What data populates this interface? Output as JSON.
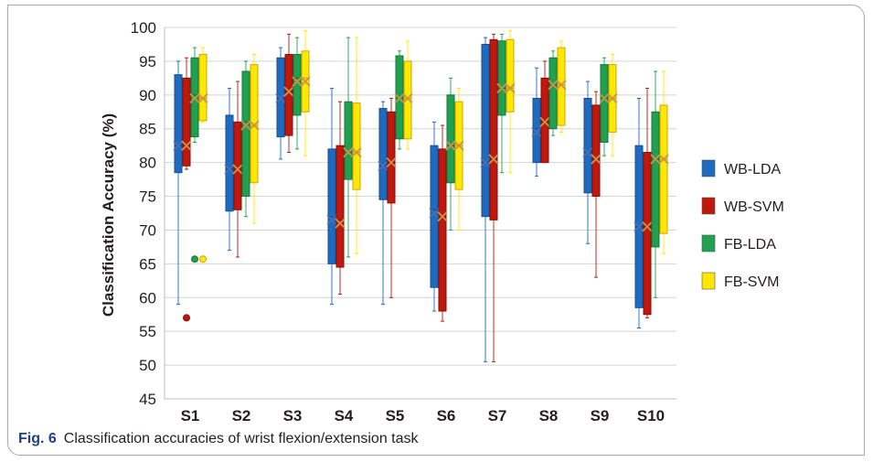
{
  "caption": {
    "label": "Fig. 6",
    "text": "Classification accuracies of wrist flexion/extension task"
  },
  "colors": {
    "WB-LDA": "#1f6bc0",
    "WB-SVM": "#c0180e",
    "FB-LDA": "#20a050",
    "FB-SVM": "#ffe800"
  },
  "chart_data": {
    "type": "boxplot",
    "ylabel": "Classification Accuracy (%)",
    "xlabel": "",
    "ylim": [
      45,
      100
    ],
    "yticks": [
      45,
      50,
      55,
      60,
      65,
      70,
      75,
      80,
      85,
      90,
      95,
      100
    ],
    "categories": [
      "S1",
      "S2",
      "S3",
      "S4",
      "S5",
      "S6",
      "S7",
      "S8",
      "S9",
      "S10"
    ],
    "grid": "horizontal",
    "legend_position": "right",
    "series": [
      {
        "name": "WB-LDA",
        "boxes": [
          {
            "min": 59,
            "q1": 78.5,
            "median": 82.5,
            "q3": 93,
            "max": 95,
            "mean": 82.5,
            "outliers": []
          },
          {
            "min": 67,
            "q1": 72.8,
            "median": 79,
            "q3": 87,
            "max": 91,
            "mean": 79,
            "outliers": []
          },
          {
            "min": 80.5,
            "q1": 83.8,
            "median": 89.5,
            "q3": 95.5,
            "max": 97,
            "mean": 89.5,
            "outliers": []
          },
          {
            "min": 59,
            "q1": 65,
            "median": 72,
            "q3": 82,
            "max": 91,
            "mean": 71.5,
            "outliers": []
          },
          {
            "min": 59,
            "q1": 74.5,
            "median": 79.5,
            "q3": 88,
            "max": 89,
            "mean": 79.5,
            "outliers": []
          },
          {
            "min": 58,
            "q1": 61.5,
            "median": 73,
            "q3": 82.5,
            "max": 86,
            "mean": 72.5,
            "outliers": []
          },
          {
            "min": 50.5,
            "q1": 72,
            "median": 80,
            "q3": 97.5,
            "max": 98.5,
            "mean": 80,
            "outliers": []
          },
          {
            "min": 78,
            "q1": 80,
            "median": 85,
            "q3": 89.5,
            "max": 94,
            "mean": 84.5,
            "outliers": []
          },
          {
            "min": 68,
            "q1": 75.5,
            "median": 81.5,
            "q3": 89.5,
            "max": 92,
            "mean": 81.5,
            "outliers": []
          },
          {
            "min": 55.5,
            "q1": 58.5,
            "median": 70.5,
            "q3": 82.5,
            "max": 89.5,
            "mean": 70.5,
            "outliers": []
          }
        ]
      },
      {
        "name": "WB-SVM",
        "boxes": [
          {
            "min": 79,
            "q1": 79.5,
            "median": 82.5,
            "q3": 92.5,
            "max": 95.5,
            "mean": 82.5,
            "outliers": [
              57
            ]
          },
          {
            "min": 66,
            "q1": 73,
            "median": 79,
            "q3": 86,
            "max": 92,
            "mean": 79,
            "outliers": []
          },
          {
            "min": 81.5,
            "q1": 84,
            "median": 90.5,
            "q3": 96,
            "max": 99,
            "mean": 90.5,
            "outliers": []
          },
          {
            "min": 60.5,
            "q1": 64.5,
            "median": 71.5,
            "q3": 82.5,
            "max": 89,
            "mean": 71,
            "outliers": []
          },
          {
            "min": 60,
            "q1": 74,
            "median": 80,
            "q3": 87.5,
            "max": 89.5,
            "mean": 80,
            "outliers": []
          },
          {
            "min": 56.5,
            "q1": 58,
            "median": 72,
            "q3": 82,
            "max": 85.5,
            "mean": 72,
            "outliers": []
          },
          {
            "min": 50.5,
            "q1": 71.5,
            "median": 80.5,
            "q3": 98.2,
            "max": 99,
            "mean": 80.5,
            "outliers": []
          },
          {
            "min": 80,
            "q1": 80,
            "median": 86,
            "q3": 92.5,
            "max": 95,
            "mean": 86,
            "outliers": []
          },
          {
            "min": 63,
            "q1": 75,
            "median": 80.5,
            "q3": 88.5,
            "max": 90.5,
            "mean": 80.5,
            "outliers": []
          },
          {
            "min": 57,
            "q1": 57.5,
            "median": 70.5,
            "q3": 81.5,
            "max": 91,
            "mean": 70.5,
            "outliers": []
          }
        ]
      },
      {
        "name": "FB-LDA",
        "boxes": [
          {
            "min": 83,
            "q1": 83.8,
            "median": 90,
            "q3": 95.5,
            "max": 97,
            "mean": 89.5,
            "outliers": [
              65.7
            ]
          },
          {
            "min": 72,
            "q1": 75,
            "median": 86,
            "q3": 93.5,
            "max": 95,
            "mean": 85.5,
            "outliers": []
          },
          {
            "min": 82,
            "q1": 87,
            "median": 92.5,
            "q3": 96,
            "max": 98.5,
            "mean": 92,
            "outliers": []
          },
          {
            "min": 66,
            "q1": 77.5,
            "median": 81.5,
            "q3": 89,
            "max": 98.5,
            "mean": 81.5,
            "outliers": []
          },
          {
            "min": 82,
            "q1": 83.5,
            "median": 89.5,
            "q3": 95.8,
            "max": 96.5,
            "mean": 89.5,
            "outliers": []
          },
          {
            "min": 70,
            "q1": 77,
            "median": 82.5,
            "q3": 90,
            "max": 92.5,
            "mean": 82.5,
            "outliers": []
          },
          {
            "min": 78.5,
            "q1": 87,
            "median": 91,
            "q3": 98,
            "max": 99,
            "mean": 91,
            "outliers": []
          },
          {
            "min": 84,
            "q1": 85,
            "median": 91.5,
            "q3": 95.5,
            "max": 96.5,
            "mean": 91.5,
            "outliers": []
          },
          {
            "min": 81,
            "q1": 83,
            "median": 89.5,
            "q3": 94.5,
            "max": 95.5,
            "mean": 89.5,
            "outliers": []
          },
          {
            "min": 60,
            "q1": 67.5,
            "median": 80.5,
            "q3": 87.5,
            "max": 93.5,
            "mean": 80.5,
            "outliers": []
          }
        ]
      },
      {
        "name": "FB-SVM",
        "boxes": [
          {
            "min": 86,
            "q1": 86.2,
            "median": 89.5,
            "q3": 96,
            "max": 97,
            "mean": 89.5,
            "outliers": [
              65.7
            ]
          },
          {
            "min": 71,
            "q1": 77,
            "median": 85.5,
            "q3": 94.5,
            "max": 96,
            "mean": 85.5,
            "outliers": []
          },
          {
            "min": 81,
            "q1": 87.5,
            "median": 92.5,
            "q3": 96.5,
            "max": 99.5,
            "mean": 92,
            "outliers": []
          },
          {
            "min": 66.5,
            "q1": 76,
            "median": 81.5,
            "q3": 88.8,
            "max": 98.5,
            "mean": 81.5,
            "outliers": []
          },
          {
            "min": 82,
            "q1": 83.5,
            "median": 89.5,
            "q3": 95,
            "max": 98,
            "mean": 89.5,
            "outliers": []
          },
          {
            "min": 70,
            "q1": 76,
            "median": 82.5,
            "q3": 89,
            "max": 91,
            "mean": 82.5,
            "outliers": []
          },
          {
            "min": 78.5,
            "q1": 87.5,
            "median": 91,
            "q3": 98.2,
            "max": 99.5,
            "mean": 91,
            "outliers": []
          },
          {
            "min": 84.5,
            "q1": 85.5,
            "median": 91.5,
            "q3": 97,
            "max": 98,
            "mean": 91.5,
            "outliers": []
          },
          {
            "min": 81,
            "q1": 84.5,
            "median": 89.5,
            "q3": 94.5,
            "max": 96,
            "mean": 89.5,
            "outliers": []
          },
          {
            "min": 66.5,
            "q1": 69.5,
            "median": 80.5,
            "q3": 88.5,
            "max": 93.5,
            "mean": 80.5,
            "outliers": []
          }
        ]
      }
    ]
  }
}
